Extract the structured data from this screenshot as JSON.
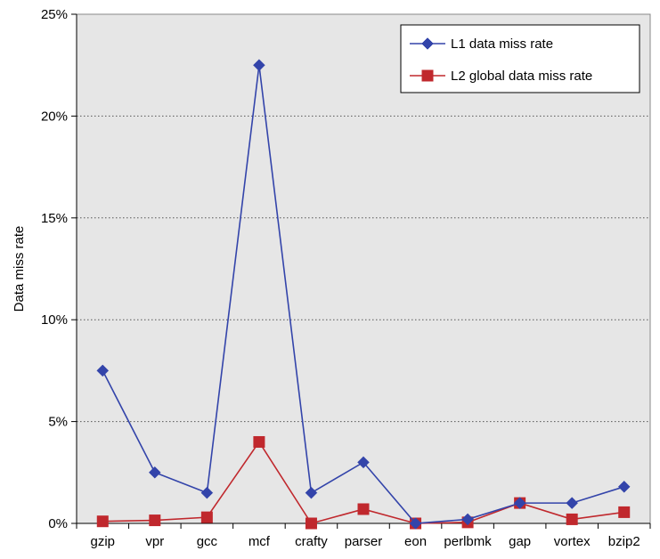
{
  "chart_data": {
    "type": "line",
    "title": "",
    "xlabel": "",
    "ylabel": "Data miss rate",
    "ylim": [
      0,
      25
    ],
    "yticks": [
      "0%",
      "5%",
      "10%",
      "15%",
      "20%",
      "25%"
    ],
    "categories": [
      "gzip",
      "vpr",
      "gcc",
      "mcf",
      "crafty",
      "parser",
      "eon",
      "perlbmk",
      "gap",
      "vortex",
      "bzip2"
    ],
    "grid": "horizontal-dotted",
    "legend_position": "top-right",
    "plot_background": "#e6e6e6",
    "series": [
      {
        "name": "L1 data miss rate",
        "color": "#3344aa",
        "marker": "diamond",
        "values": [
          7.5,
          2.5,
          1.5,
          22.5,
          1.5,
          3.0,
          0.0,
          0.2,
          1.0,
          1.0,
          1.8
        ]
      },
      {
        "name": "L2 global data miss rate",
        "color": "#c0282d",
        "marker": "square",
        "values": [
          0.1,
          0.15,
          0.3,
          4.0,
          0.0,
          0.7,
          0.0,
          0.05,
          1.0,
          0.2,
          0.55
        ]
      }
    ]
  }
}
